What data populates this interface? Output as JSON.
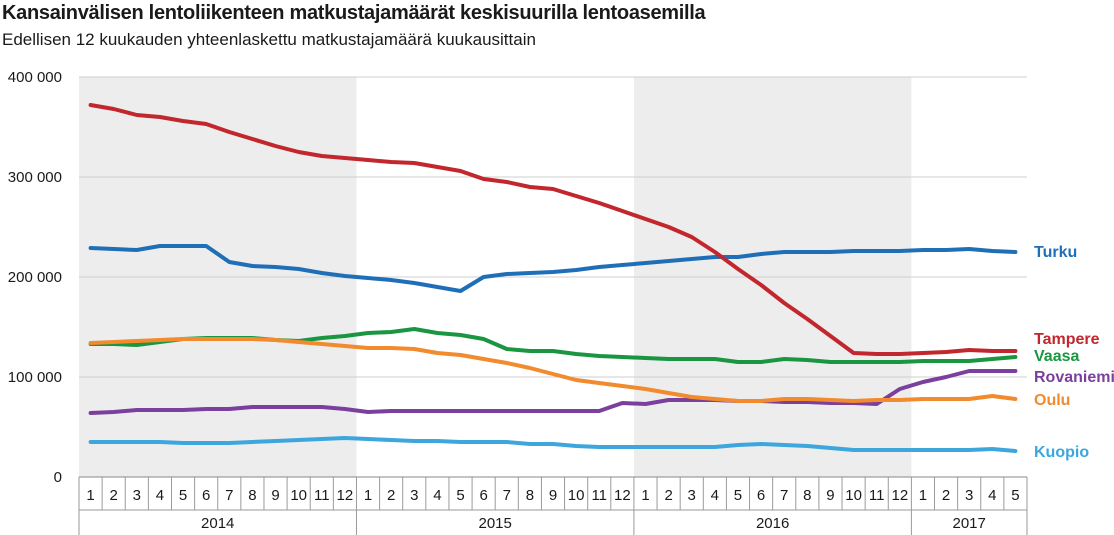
{
  "title": "Kansainvälisen lentoliikenteen matkustajamäärät keskisuurilla lentoasemilla",
  "subtitle": "Edellisen 12 kuukauden yhteenlaskettu matkustajamäärä kuukausittain",
  "chart_data": {
    "type": "line",
    "title": "Kansainvälisen lentoliikenteen matkustajamäärät keskisuurilla lentoasemilla",
    "subtitle": "Edellisen 12 kuukauden yhteenlaskettu matkustajamäärä kuukausittain",
    "xlabel": "",
    "ylabel": "",
    "ylim": [
      0,
      400000
    ],
    "y_ticks": [
      0,
      100000,
      200000,
      300000,
      400000
    ],
    "y_tick_labels": [
      "0",
      "100 000",
      "200 000",
      "300 000",
      "400 000"
    ],
    "grid": "horizontal",
    "legend": "labels at right end of lines",
    "years": [
      {
        "label": "2014",
        "months": 12
      },
      {
        "label": "2015",
        "months": 12
      },
      {
        "label": "2016",
        "months": 12
      },
      {
        "label": "2017",
        "months": 5
      }
    ],
    "categories": [
      "1",
      "2",
      "3",
      "4",
      "5",
      "6",
      "7",
      "8",
      "9",
      "10",
      "11",
      "12",
      "1",
      "2",
      "3",
      "4",
      "5",
      "6",
      "7",
      "8",
      "9",
      "10",
      "11",
      "12",
      "1",
      "2",
      "3",
      "4",
      "5",
      "6",
      "7",
      "8",
      "9",
      "10",
      "11",
      "12",
      "1",
      "2",
      "3",
      "4",
      "5"
    ],
    "series": [
      {
        "name": "Turku",
        "color": "#1f6fb8",
        "values": [
          229000,
          228000,
          227000,
          231000,
          231000,
          231000,
          215000,
          211000,
          210000,
          208000,
          204000,
          201000,
          199000,
          197000,
          194000,
          190000,
          186000,
          200000,
          203000,
          204000,
          205000,
          207000,
          210000,
          212000,
          214000,
          216000,
          218000,
          220000,
          220000,
          223000,
          225000,
          225000,
          225000,
          226000,
          226000,
          226000,
          227000,
          227000,
          228000,
          226000,
          225000
        ]
      },
      {
        "name": "Tampere",
        "color": "#c1272d",
        "values": [
          372000,
          368000,
          362000,
          360000,
          356000,
          353000,
          345000,
          338000,
          331000,
          325000,
          321000,
          319000,
          317000,
          315000,
          314000,
          310000,
          306000,
          298000,
          295000,
          290000,
          288000,
          281000,
          274000,
          266000,
          258000,
          250000,
          240000,
          225000,
          208000,
          192000,
          174000,
          158000,
          141000,
          124000,
          123000,
          123000,
          124000,
          125000,
          127000,
          126000,
          126000
        ]
      },
      {
        "name": "Vaasa",
        "color": "#1a9641",
        "values": [
          133000,
          133000,
          132000,
          135000,
          138000,
          139000,
          139000,
          139000,
          137000,
          136000,
          139000,
          141000,
          144000,
          145000,
          148000,
          144000,
          142000,
          138000,
          128000,
          126000,
          126000,
          123000,
          121000,
          120000,
          119000,
          118000,
          118000,
          118000,
          115000,
          115000,
          118000,
          117000,
          115000,
          115000,
          115000,
          115000,
          116000,
          116000,
          116000,
          118000,
          120000
        ]
      },
      {
        "name": "Rovaniemi",
        "color": "#7b3f9e",
        "values": [
          64000,
          65000,
          67000,
          67000,
          67000,
          68000,
          68000,
          70000,
          70000,
          70000,
          70000,
          68000,
          65000,
          66000,
          66000,
          66000,
          66000,
          66000,
          66000,
          66000,
          66000,
          66000,
          66000,
          74000,
          73000,
          77000,
          77000,
          77000,
          76000,
          76000,
          75000,
          75000,
          74000,
          74000,
          73000,
          88000,
          95000,
          100000,
          106000,
          106000,
          106000
        ]
      },
      {
        "name": "Oulu",
        "color": "#f28a2e",
        "values": [
          134000,
          135000,
          136000,
          137000,
          138000,
          138000,
          138000,
          138000,
          137000,
          135000,
          133000,
          131000,
          129000,
          129000,
          128000,
          124000,
          122000,
          118000,
          114000,
          109000,
          103000,
          97000,
          94000,
          91000,
          88000,
          84000,
          80000,
          78000,
          76000,
          76000,
          78000,
          78000,
          77000,
          76000,
          77000,
          77000,
          78000,
          78000,
          78000,
          81000,
          78000
        ]
      },
      {
        "name": "Kuopio",
        "color": "#3ca6dd",
        "values": [
          35000,
          35000,
          35000,
          35000,
          34000,
          34000,
          34000,
          35000,
          36000,
          37000,
          38000,
          39000,
          38000,
          37000,
          36000,
          36000,
          35000,
          35000,
          35000,
          33000,
          33000,
          31000,
          30000,
          30000,
          30000,
          30000,
          30000,
          30000,
          32000,
          33000,
          32000,
          31000,
          29000,
          27000,
          27000,
          27000,
          27000,
          27000,
          27000,
          28000,
          26000
        ]
      }
    ]
  }
}
